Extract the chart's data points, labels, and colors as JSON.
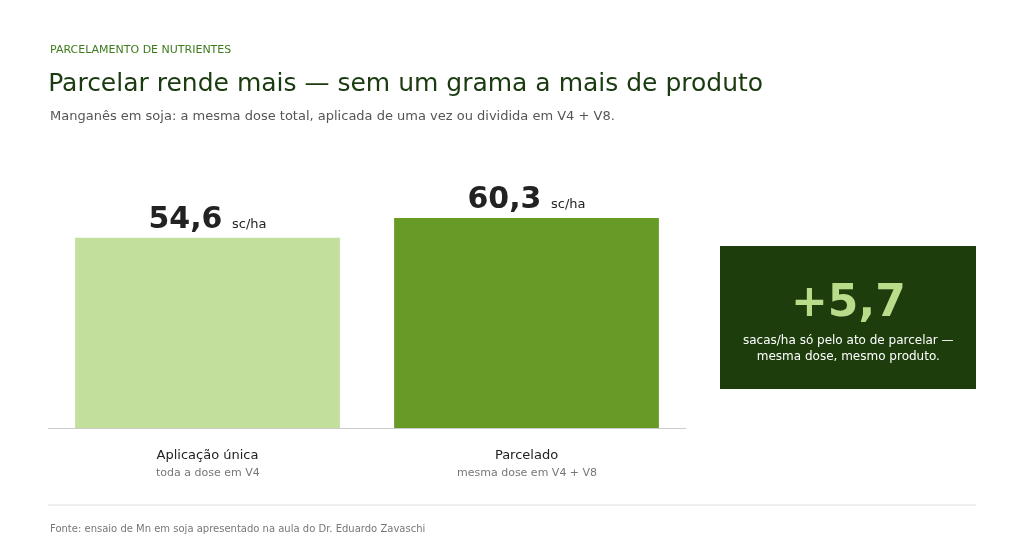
{
  "chart_data": {
    "type": "bar",
    "title": "Parcelar rende mais — sem um grama a mais de produto",
    "subtitle": "Manganês em soja: a mesma dose total, aplicada de uma vez ou dividida em V4 + V8.",
    "categories": [
      "Aplicação única",
      "Parcelado"
    ],
    "values": [
      54.6,
      60.3
    ],
    "value_labels": [
      "54,6 sc/ha",
      "60,3 sc/ha"
    ],
    "colors": [
      "#c2df9b",
      "#679b26"
    ],
    "legend": false,
    "annotations": [
      "PARCELAMENTO DE NUTRIENTES",
      "toda a dose em V4",
      "mesma dose em V4 + V8",
      "+5,7",
      "sacas/ha só pelo ato de parcelar — mesma dose, mesmo produto.",
      "Fonte: ensaio de Mn em soja apresentado na aula do Dr. Eduardo Zavaschi"
    ]
  }
}
